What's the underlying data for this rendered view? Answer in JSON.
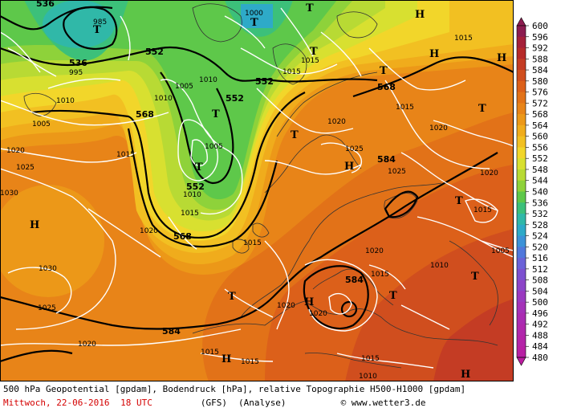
{
  "footer": {
    "line1": "500 hPa Geopotential [gpdam], Bodendruck [hPa], relative Topographie H500-H1000 [gpdam]",
    "date": "Mittwoch, 22-06-2016",
    "time": "18 UTC",
    "model": "(GFS)",
    "run": "(Analyse)",
    "copyright": "© www.wetter3.de"
  },
  "colors": {
    "coast": "#333333",
    "isobar": "#ffffff",
    "geopotential": "#000000",
    "text_red": "#d40000"
  },
  "legend": {
    "values": [
      600,
      596,
      592,
      588,
      584,
      580,
      576,
      572,
      568,
      564,
      560,
      556,
      552,
      548,
      544,
      540,
      536,
      532,
      528,
      524,
      520,
      516,
      512,
      508,
      504,
      500,
      496,
      492,
      488,
      484,
      480
    ],
    "labels": [
      "600",
      "596",
      "592",
      "588",
      "584",
      "580",
      "576",
      "572",
      "568",
      "564",
      "560",
      "556",
      "552",
      "548",
      "544",
      "540",
      "536",
      "532",
      "528",
      "524",
      "520",
      "516",
      "512",
      "508",
      "504",
      "500",
      "496",
      "492",
      "488",
      "484",
      "480"
    ],
    "colors": [
      "#8c1c50",
      "#a5203a",
      "#b62a2a",
      "#c43c24",
      "#d04e1e",
      "#dc601a",
      "#e27218",
      "#e88418",
      "#ec9818",
      "#f0ac1c",
      "#f2c022",
      "#f2d62a",
      "#d8e030",
      "#b8da34",
      "#8ed23a",
      "#5ec84a",
      "#3cc07a",
      "#30b8a8",
      "#2eaac8",
      "#3c92d8",
      "#5078dc",
      "#6a62d8",
      "#7c50d0",
      "#8c44c8",
      "#9a3ac0",
      "#a432b8",
      "#aa2cb2",
      "#b028ac",
      "#b424a8",
      "#b820a4",
      "#bc1ca0"
    ]
  },
  "map": {
    "geopotential_labels": [
      "536",
      "536",
      "552",
      "552",
      "552",
      "552",
      "568",
      "568",
      "568",
      "584",
      "584",
      "584"
    ],
    "isobar_labels": [
      "985",
      "995",
      "1000",
      "1005",
      "1005",
      "1010",
      "1010",
      "1010",
      "1015",
      "1015",
      "1015",
      "1015",
      "1020",
      "1020",
      "1020",
      "1020",
      "1020",
      "1025",
      "1025",
      "1025",
      "1030",
      "1015",
      "1010",
      "1005",
      "1015",
      "1020",
      "1020",
      "1015",
      "1010",
      "1005",
      "1025",
      "1015",
      "1015",
      "1020",
      "1015",
      "1010",
      "1015",
      "1015",
      "1020",
      "1030"
    ],
    "pressure_centers": [
      "H",
      "H",
      "H",
      "H",
      "H",
      "H",
      "H",
      "H",
      "T",
      "T",
      "T",
      "T",
      "T",
      "T",
      "T",
      "T",
      "T",
      "T",
      "T",
      "T",
      "T"
    ]
  }
}
